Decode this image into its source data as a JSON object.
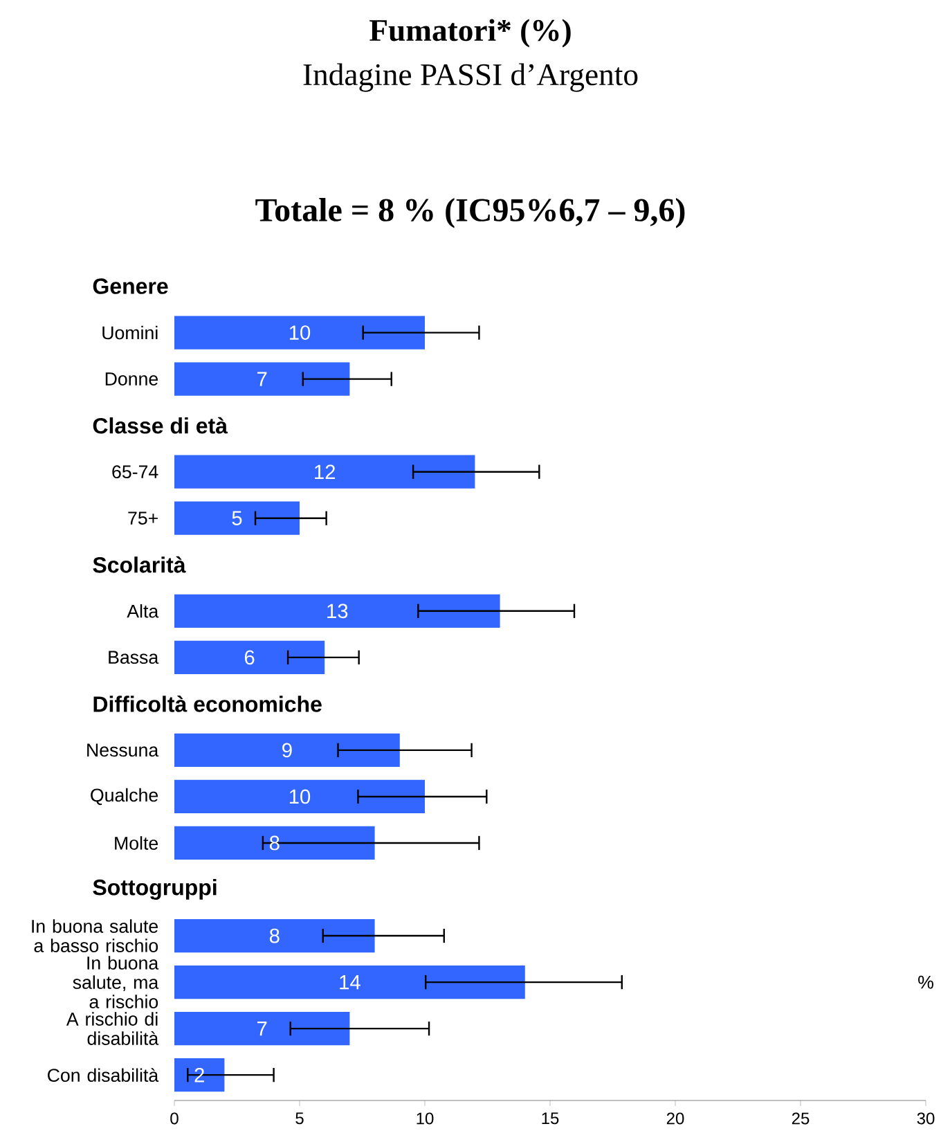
{
  "chart_data": {
    "type": "bar",
    "orientation": "horizontal",
    "title": "Fumatori* (%)",
    "subtitle": "Indagine PASSI d’Argento",
    "annotations": [
      "Totale = 8 % (IC95%6,7 – 9,6)"
    ],
    "xlabel": "%",
    "categories": [
      "Genere",
      "Uomini",
      "Donne",
      "Classe di età",
      "65-74",
      "75+",
      "Scolarità",
      "Alta",
      "Bassa",
      "Difficoltà economiche",
      "Nessuna",
      "Qualche",
      "Molte",
      "Sottogruppi",
      "In buona salute a basso rischio",
      "In buona salute, ma a rischio",
      "A rischio di disabilità",
      "Con disabilità"
    ],
    "values": [
      null,
      10,
      7,
      null,
      12,
      5,
      null,
      13,
      6,
      null,
      9,
      10,
      8,
      null,
      8,
      14,
      7,
      2
    ],
    "errors": [
      null,
      [
        7.5,
        12.2
      ],
      [
        5.1,
        8.7
      ],
      null,
      [
        9.5,
        14.6
      ],
      [
        3.2,
        6.1
      ],
      null,
      [
        9.7,
        16.0
      ],
      [
        4.5,
        7.4
      ],
      null,
      [
        6.5,
        11.9
      ],
      [
        7.3,
        12.5
      ],
      [
        3.5,
        12.2
      ],
      null,
      [
        5.9,
        10.8
      ],
      [
        10.0,
        17.9
      ],
      [
        4.6,
        10.2
      ],
      [
        0.5,
        4.0
      ]
    ],
    "color": "#3366ff",
    "data_labels": true,
    "xlim": [
      0,
      30
    ],
    "xticks": [
      0,
      5,
      10,
      15,
      20,
      25,
      30
    ],
    "grid": false
  }
}
